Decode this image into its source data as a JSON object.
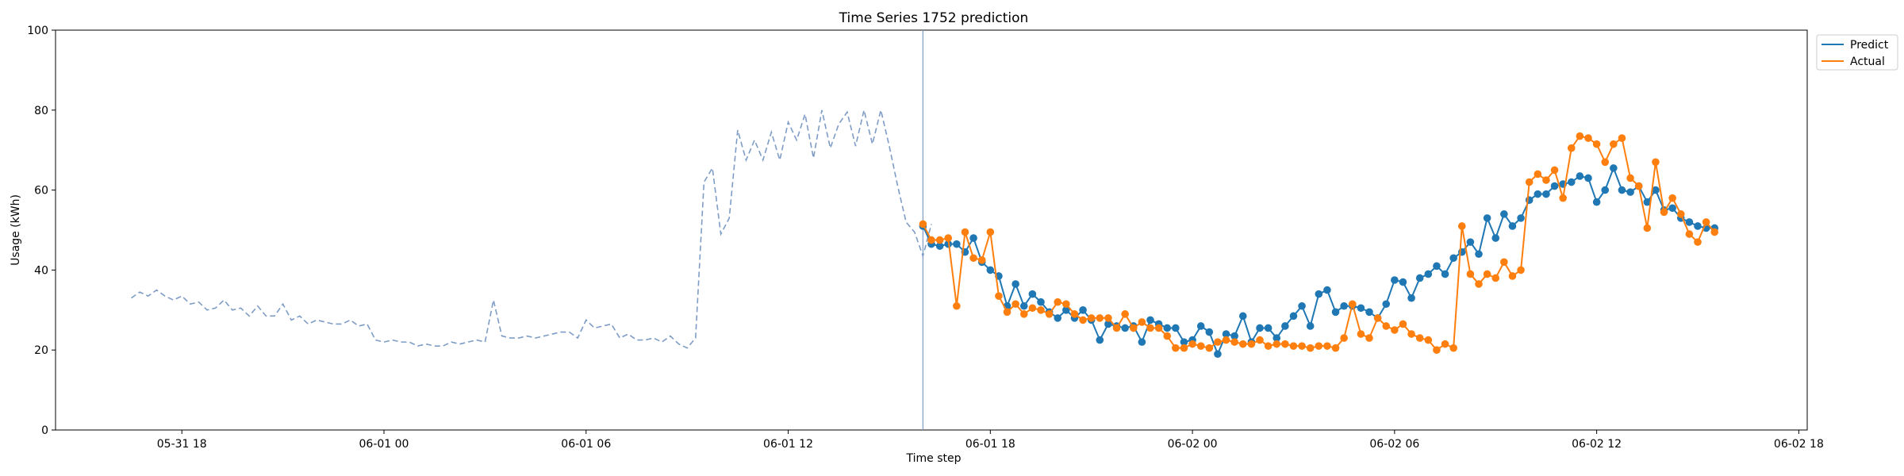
{
  "chart_data": {
    "type": "line",
    "title": "Time Series 1752 prediction",
    "xlabel": "Time step",
    "ylabel": "Usage (kWh)",
    "ylim": [
      0,
      100
    ],
    "yticks": [
      0,
      20,
      40,
      60,
      80,
      100
    ],
    "xlim": [
      "2024-05-31 14:15",
      "2024-06-02 18:15"
    ],
    "xticks": [
      {
        "t": "2024-05-31 18:00",
        "label": "05-31 18"
      },
      {
        "t": "2024-06-01 00:00",
        "label": "06-01 00"
      },
      {
        "t": "2024-06-01 06:00",
        "label": "06-01 06"
      },
      {
        "t": "2024-06-01 12:00",
        "label": "06-01 12"
      },
      {
        "t": "2024-06-01 18:00",
        "label": "06-01 18"
      },
      {
        "t": "2024-06-02 00:00",
        "label": "06-02 00"
      },
      {
        "t": "2024-06-02 06:00",
        "label": "06-02 06"
      },
      {
        "t": "2024-06-02 12:00",
        "label": "06-02 12"
      },
      {
        "t": "2024-06-02 18:00",
        "label": "06-02 18"
      }
    ],
    "interval_minutes": 15,
    "vertical_line_at": "2024-06-01 16:00",
    "legend": {
      "position": "top-right outside",
      "entries": [
        "Predict",
        "Actual"
      ]
    },
    "history": {
      "start": "2024-05-31 16:30",
      "style": "dashed",
      "color": "#7e9cc6",
      "values": [
        33,
        34.5,
        33.5,
        35,
        33.5,
        32.5,
        33.5,
        31.5,
        32,
        30,
        30.5,
        32.5,
        30,
        30.5,
        28.5,
        31,
        28.5,
        28.5,
        31.5,
        27.5,
        28.5,
        26.5,
        27.5,
        27,
        26.5,
        26.5,
        27.5,
        26,
        26.5,
        22.5,
        22,
        22.5,
        22,
        22,
        21,
        21.5,
        21,
        21,
        22,
        21.5,
        22,
        22.5,
        22,
        32.5,
        23.5,
        23,
        23,
        23.5,
        23,
        23.5,
        24,
        24.5,
        24.5,
        23,
        27.5,
        25.5,
        26,
        26.5,
        23,
        24,
        22.5,
        22.5,
        23,
        22,
        23.5,
        21.5,
        20.5,
        23,
        62,
        65.5,
        49,
        53,
        75,
        67.5,
        72.5,
        67.5,
        74.5,
        67.5,
        77,
        72.5,
        79,
        68,
        80,
        70.5,
        76.5,
        79.5,
        71,
        80,
        71.5,
        80,
        71,
        61,
        52,
        49.5,
        43.5,
        51.5
      ]
    },
    "series": [
      {
        "name": "Predict",
        "color": "#1f77b4",
        "start": "2024-06-01 16:00",
        "values": [
          51,
          46.5,
          46,
          46.5,
          46.5,
          44.5,
          48,
          42,
          40,
          38.5,
          31,
          36.5,
          31,
          34,
          32,
          29.5,
          28,
          30,
          28,
          30,
          27.5,
          22.5,
          26.5,
          26,
          25.5,
          26,
          22,
          27.5,
          26.5,
          25.5,
          25.5,
          22,
          22.5,
          26,
          24.5,
          19,
          24,
          23.5,
          28.5,
          22,
          25.5,
          25.5,
          23,
          26,
          28.5,
          31,
          26,
          34,
          35,
          29.5,
          31,
          31,
          30.5,
          29.5,
          28,
          31.5,
          37.5,
          37,
          33,
          38,
          39,
          41,
          39,
          43,
          44.5,
          47,
          44,
          53,
          48,
          54,
          51,
          53,
          57.5,
          59,
          59,
          61,
          61.5,
          62,
          63.5,
          63,
          57,
          60,
          65.5,
          60,
          59.5,
          61,
          57,
          60,
          55,
          55.5,
          53,
          52,
          51,
          50.5,
          50.5
        ]
      },
      {
        "name": "Actual",
        "color": "#ff7f0e",
        "start": "2024-06-01 16:00",
        "values": [
          51.5,
          47.5,
          47.5,
          48,
          31,
          49.5,
          43,
          42.5,
          49.5,
          33.5,
          29.5,
          31.5,
          29,
          30.5,
          30,
          29,
          32,
          31.5,
          29,
          27.5,
          28,
          28,
          28,
          25.5,
          29,
          25.5,
          27,
          25.5,
          25.5,
          23.5,
          20.5,
          20.5,
          21.5,
          21,
          20.5,
          22,
          22.5,
          22,
          21.5,
          21.5,
          22.5,
          21,
          21.5,
          21.5,
          21,
          21,
          20.5,
          21,
          21,
          20.5,
          23,
          31.5,
          24,
          23,
          28,
          26,
          25,
          26.5,
          24,
          23,
          22.5,
          20,
          21.5,
          20.5,
          51,
          39,
          36.5,
          39,
          38,
          42,
          38.5,
          40,
          62,
          64,
          62.5,
          65,
          58,
          70.5,
          73.5,
          73,
          71.5,
          67,
          71.5,
          73,
          63,
          61,
          50.5,
          67,
          54.5,
          58,
          54,
          49,
          47,
          52,
          49.5
        ]
      }
    ]
  }
}
